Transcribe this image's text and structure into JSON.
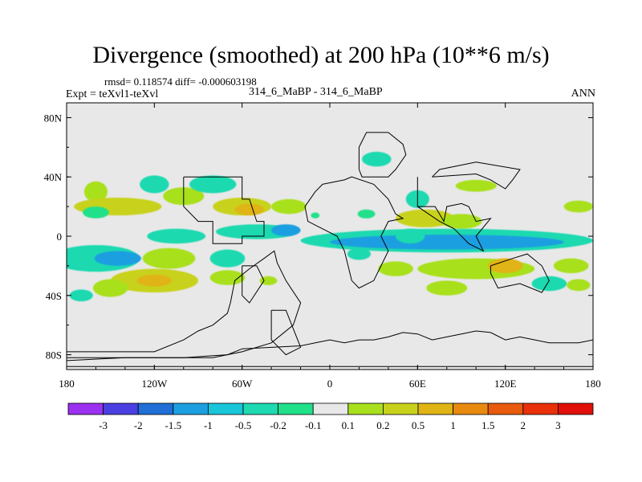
{
  "chart_data": {
    "type": "heatmap",
    "title": "Divergence (smoothed) at 200 hPa (10**6 m/s)",
    "rmsd_label": "rmsd= 0.118574",
    "diff_label": "diff= -0.000603198",
    "expt_label": "Expt = teXvl1-teXvl",
    "case_label": "314_6_MaBP - 314_6_MaBP",
    "season_label": "ANN",
    "x_ticks": [
      {
        "value": -180,
        "label": "180"
      },
      {
        "value": -120,
        "label": "120W"
      },
      {
        "value": -60,
        "label": "60W"
      },
      {
        "value": 0,
        "label": "0"
      },
      {
        "value": 60,
        "label": "60E"
      },
      {
        "value": 120,
        "label": "120E"
      },
      {
        "value": 180,
        "label": "180"
      }
    ],
    "y_ticks": [
      {
        "value": 80,
        "label": "80N"
      },
      {
        "value": 40,
        "label": "40N"
      },
      {
        "value": 0,
        "label": "0"
      },
      {
        "value": -40,
        "label": "40S"
      },
      {
        "value": -80,
        "label": "80S"
      }
    ],
    "xlim": [
      -180,
      180
    ],
    "ylim": [
      -90,
      90
    ],
    "colorbar": {
      "levels": [
        "-3",
        "-2",
        "-1.5",
        "-1",
        "-0.5",
        "-0.2",
        "-0.1",
        "0.1",
        "0.2",
        "0.5",
        "1",
        "1.5",
        "2",
        "3"
      ],
      "colors": [
        "#9b30f0",
        "#4a3fe0",
        "#1f6fd6",
        "#1c9fe0",
        "#19c5d8",
        "#1fd9b0",
        "#20e08a",
        "#e8e8e8",
        "#a8e01e",
        "#c8d21c",
        "#e0b416",
        "#e88a10",
        "#e85a0c",
        "#e8300a",
        "#e00f0a"
      ]
    },
    "regions": [
      {
        "value": 0.3,
        "lon": -160,
        "lat": 30,
        "rlon": 8,
        "rlat": 7,
        "color": "#a8e01e"
      },
      {
        "value": 0.5,
        "lon": -145,
        "lat": 20,
        "rlon": 30,
        "rlat": 6,
        "color": "#c8d21c"
      },
      {
        "value": -0.15,
        "lon": -160,
        "lat": 16,
        "rlon": 9,
        "rlat": 4,
        "color": "#20e08a"
      },
      {
        "value": -0.3,
        "lon": -120,
        "lat": 35,
        "rlon": 10,
        "rlat": 6,
        "color": "#1fd9b0"
      },
      {
        "value": 0.3,
        "lon": -100,
        "lat": 27,
        "rlon": 14,
        "rlat": 6,
        "color": "#a8e01e"
      },
      {
        "value": -0.3,
        "lon": -80,
        "lat": 35,
        "rlon": 16,
        "rlat": 6,
        "color": "#1fd9b0"
      },
      {
        "value": 0.3,
        "lon": -60,
        "lat": 20,
        "rlon": 20,
        "rlat": 6,
        "color": "#c8d21c"
      },
      {
        "value": 0.5,
        "lon": -55,
        "lat": 18,
        "rlon": 10,
        "rlat": 4,
        "color": "#e0b416"
      },
      {
        "value": -0.3,
        "lon": -105,
        "lat": 0,
        "rlon": 20,
        "rlat": 5,
        "color": "#1fd9b0"
      },
      {
        "value": -0.3,
        "lon": -50,
        "lat": 3,
        "rlon": 28,
        "rlat": 5,
        "color": "#1fd9b0"
      },
      {
        "value": -0.6,
        "lon": -30,
        "lat": 4,
        "rlon": 10,
        "rlat": 4,
        "color": "#1c9fe0"
      },
      {
        "value": 0.3,
        "lon": -28,
        "lat": 20,
        "rlon": 12,
        "rlat": 5,
        "color": "#a8e01e"
      },
      {
        "value": -0.15,
        "lon": -10,
        "lat": 14,
        "rlon": 3,
        "rlat": 2,
        "color": "#20e08a"
      },
      {
        "value": -0.3,
        "lon": 32,
        "lat": 52,
        "rlon": 10,
        "rlat": 5,
        "color": "#1fd9b0"
      },
      {
        "value": 0.3,
        "lon": 100,
        "lat": 34,
        "rlon": 14,
        "rlat": 4,
        "color": "#a8e01e"
      },
      {
        "value": 0.3,
        "lon": 170,
        "lat": 20,
        "rlon": 10,
        "rlat": 4,
        "color": "#a8e01e"
      },
      {
        "value": 0.3,
        "lon": 65,
        "lat": 12,
        "rlon": 20,
        "rlat": 6,
        "color": "#c8d21c"
      },
      {
        "value": -0.3,
        "lon": 60,
        "lat": 25,
        "rlon": 8,
        "rlat": 6,
        "color": "#1fd9b0"
      },
      {
        "value": 0.3,
        "lon": 90,
        "lat": 10,
        "rlon": 14,
        "rlat": 5,
        "color": "#a8e01e"
      },
      {
        "value": -0.3,
        "lon": 25,
        "lat": 15,
        "rlon": 6,
        "rlat": 3,
        "color": "#20e08a"
      },
      {
        "value": -0.3,
        "lon": 80,
        "lat": -3,
        "rlon": 100,
        "rlat": 8,
        "color": "#1fd9b0"
      },
      {
        "value": -0.6,
        "lon": 80,
        "lat": -4,
        "rlon": 80,
        "rlat": 5,
        "color": "#1c9fe0"
      },
      {
        "value": -0.3,
        "lon": 55,
        "lat": 0,
        "rlon": 10,
        "rlat": 5,
        "color": "#1fd9b0"
      },
      {
        "value": -0.3,
        "lon": -160,
        "lat": -15,
        "rlon": 30,
        "rlat": 9,
        "color": "#1fd9b0"
      },
      {
        "value": -0.6,
        "lon": -145,
        "lat": -15,
        "rlon": 16,
        "rlat": 5,
        "color": "#1c9fe0"
      },
      {
        "value": 0.3,
        "lon": -110,
        "lat": -15,
        "rlon": 18,
        "rlat": 7,
        "color": "#a8e01e"
      },
      {
        "value": 0.5,
        "lon": -120,
        "lat": -30,
        "rlon": 30,
        "rlat": 8,
        "color": "#c8d21c"
      },
      {
        "value": 0.7,
        "lon": -120,
        "lat": -30,
        "rlon": 12,
        "rlat": 4,
        "color": "#e0b416"
      },
      {
        "value": 0.3,
        "lon": -150,
        "lat": -35,
        "rlon": 12,
        "rlat": 6,
        "color": "#a8e01e"
      },
      {
        "value": -0.3,
        "lon": -70,
        "lat": -15,
        "rlon": 12,
        "rlat": 6,
        "color": "#1fd9b0"
      },
      {
        "value": 0.3,
        "lon": -70,
        "lat": -28,
        "rlon": 12,
        "rlat": 5,
        "color": "#a8e01e"
      },
      {
        "value": -0.3,
        "lon": -170,
        "lat": -40,
        "rlon": 8,
        "rlat": 4,
        "color": "#1fd9b0"
      },
      {
        "value": 0.3,
        "lon": 100,
        "lat": -22,
        "rlon": 40,
        "rlat": 7,
        "color": "#a8e01e"
      },
      {
        "value": 0.5,
        "lon": 120,
        "lat": -20,
        "rlon": 12,
        "rlat": 5,
        "color": "#e0b416"
      },
      {
        "value": 0.3,
        "lon": 165,
        "lat": -20,
        "rlon": 12,
        "rlat": 5,
        "color": "#a8e01e"
      },
      {
        "value": 0.3,
        "lon": 45,
        "lat": -22,
        "rlon": 12,
        "rlat": 5,
        "color": "#a8e01e"
      },
      {
        "value": -0.3,
        "lon": 150,
        "lat": -32,
        "rlon": 12,
        "rlat": 5,
        "color": "#1fd9b0"
      },
      {
        "value": 0.3,
        "lon": 80,
        "lat": -35,
        "rlon": 14,
        "rlat": 5,
        "color": "#a8e01e"
      },
      {
        "value": 0.3,
        "lon": 170,
        "lat": -33,
        "rlon": 8,
        "rlat": 4,
        "color": "#a8e01e"
      },
      {
        "value": -0.3,
        "lon": 20,
        "lat": -12,
        "rlon": 8,
        "rlat": 4,
        "color": "#1fd9b0"
      },
      {
        "value": 0.3,
        "lon": -42,
        "lat": -30,
        "rlon": 6,
        "rlat": 3,
        "color": "#a8e01e"
      }
    ],
    "land_outlines": [
      [
        [
          -100,
          40
        ],
        [
          -60,
          40
        ],
        [
          -60,
          25
        ],
        [
          -55,
          25
        ],
        [
          -50,
          10
        ],
        [
          -45,
          10
        ],
        [
          -45,
          0
        ],
        [
          -60,
          0
        ],
        [
          -60,
          -5
        ],
        [
          -80,
          -5
        ],
        [
          -80,
          10
        ],
        [
          -90,
          10
        ],
        [
          -100,
          20
        ],
        [
          -100,
          40
        ]
      ],
      [
        [
          -180,
          -78
        ],
        [
          -120,
          -78
        ],
        [
          -100,
          -70
        ],
        [
          -90,
          -64
        ],
        [
          -80,
          -60
        ],
        [
          -70,
          -52
        ],
        [
          -68,
          -45
        ],
        [
          -65,
          -30
        ],
        [
          -55,
          -22
        ],
        [
          -45,
          -15
        ],
        [
          -38,
          -10
        ],
        [
          -36,
          -18
        ],
        [
          -30,
          -30
        ],
        [
          -20,
          -45
        ],
        [
          -25,
          -60
        ],
        [
          -40,
          -72
        ],
        [
          -60,
          -78
        ],
        [
          -80,
          -82
        ],
        [
          -180,
          -82
        ]
      ],
      [
        [
          -60,
          -20
        ],
        [
          -50,
          -20
        ],
        [
          -45,
          -30
        ],
        [
          -55,
          -45
        ],
        [
          -60,
          -40
        ],
        [
          -60,
          -20
        ]
      ],
      [
        [
          -40,
          -50
        ],
        [
          -30,
          -50
        ],
        [
          -20,
          -75
        ],
        [
          -30,
          -80
        ],
        [
          -40,
          -70
        ],
        [
          -40,
          -50
        ]
      ],
      [
        [
          -5,
          35
        ],
        [
          10,
          38
        ],
        [
          15,
          40
        ],
        [
          30,
          35
        ],
        [
          35,
          30
        ],
        [
          40,
          25
        ],
        [
          45,
          15
        ],
        [
          50,
          12
        ],
        [
          40,
          10
        ],
        [
          35,
          0
        ],
        [
          40,
          -10
        ],
        [
          35,
          -20
        ],
        [
          30,
          -30
        ],
        [
          20,
          -35
        ],
        [
          15,
          -30
        ],
        [
          10,
          -10
        ],
        [
          5,
          0
        ],
        [
          -5,
          5
        ],
        [
          -15,
          10
        ],
        [
          -17,
          20
        ],
        [
          -10,
          30
        ],
        [
          -5,
          35
        ]
      ],
      [
        [
          20,
          45
        ],
        [
          20,
          60
        ],
        [
          25,
          70
        ],
        [
          40,
          70
        ],
        [
          50,
          62
        ],
        [
          52,
          55
        ],
        [
          45,
          45
        ],
        [
          40,
          40
        ],
        [
          30,
          40
        ],
        [
          22,
          40
        ],
        [
          20,
          45
        ]
      ],
      [
        [
          60,
          40
        ],
        [
          60,
          20
        ],
        [
          72,
          20
        ],
        [
          78,
          10
        ],
        [
          80,
          20
        ],
        [
          90,
          22
        ],
        [
          95,
          20
        ],
        [
          100,
          10
        ],
        [
          110,
          12
        ],
        [
          100,
          0
        ],
        [
          105,
          -10
        ],
        [
          95,
          -5
        ],
        [
          85,
          5
        ],
        [
          75,
          10
        ],
        [
          60,
          20
        ]
      ],
      [
        [
          70,
          40
        ],
        [
          100,
          42
        ],
        [
          110,
          38
        ],
        [
          120,
          32
        ],
        [
          125,
          38
        ],
        [
          130,
          45
        ],
        [
          100,
          50
        ],
        [
          75,
          45
        ],
        [
          70,
          40
        ]
      ],
      [
        [
          110,
          -20
        ],
        [
          125,
          -15
        ],
        [
          135,
          -12
        ],
        [
          145,
          -20
        ],
        [
          150,
          -30
        ],
        [
          145,
          -38
        ],
        [
          130,
          -32
        ],
        [
          115,
          -35
        ],
        [
          110,
          -25
        ],
        [
          110,
          -20
        ]
      ],
      [
        [
          -180,
          -88
        ],
        [
          180,
          -88
        ],
        [
          180,
          -70
        ],
        [
          170,
          -72
        ],
        [
          150,
          -72
        ],
        [
          130,
          -68
        ],
        [
          120,
          -70
        ],
        [
          110,
          -65
        ],
        [
          100,
          -64
        ],
        [
          90,
          -66
        ],
        [
          80,
          -68
        ],
        [
          70,
          -70
        ],
        [
          60,
          -66
        ],
        [
          50,
          -65
        ],
        [
          40,
          -68
        ],
        [
          30,
          -70
        ],
        [
          20,
          -70
        ],
        [
          10,
          -72
        ],
        [
          0,
          -70
        ],
        [
          -10,
          -72
        ],
        [
          -20,
          -74
        ],
        [
          -60,
          -76
        ],
        [
          -70,
          -80
        ],
        [
          -100,
          -82
        ],
        [
          -140,
          -82
        ],
        [
          -180,
          -84
        ]
      ]
    ]
  }
}
